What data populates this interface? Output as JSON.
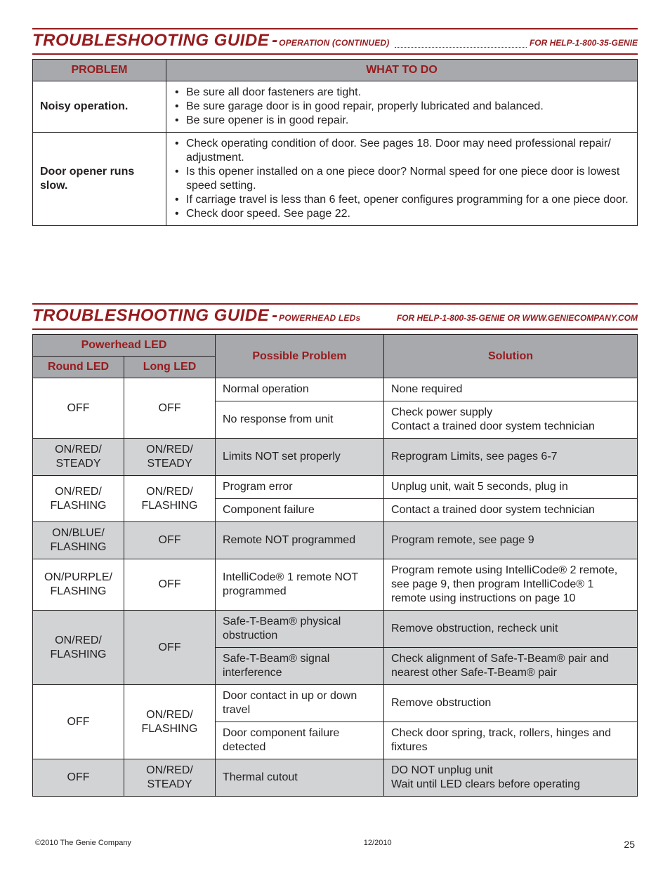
{
  "section1": {
    "title": "TROUBLESHOOTING GUIDE",
    "subtitle": "OPERATION (CONTINUED)",
    "help": "FOR HELP-1-800-35-GENIE",
    "columns": {
      "problem": "PROBLEM",
      "action": "WHAT TO DO"
    },
    "rows": [
      {
        "problem": "Noisy operation.",
        "actions": [
          "Be sure all door fasteners are tight.",
          "Be sure garage door is in good repair, properly lubricated and balanced.",
          "Be sure opener is in good repair."
        ]
      },
      {
        "problem": "Door opener runs slow.",
        "actions": [
          "Check operating condition of door.  See pages 18.  Door may need professional repair/ adjustment.",
          "Is this opener installed on a one piece door?  Normal speed for one piece door is lowest speed setting.",
          "If carriage travel is less than 6 feet, opener configures programming for a one piece door.",
          "Check door speed.  See page 22."
        ]
      }
    ]
  },
  "section2": {
    "title": "TROUBLESHOOTING GUIDE",
    "subtitle": "POWERHEAD LEDs",
    "help": "FOR HELP-1-800-35-GENIE OR WWW.GENIECOMPANY.COM",
    "columns": {
      "group": "Powerhead LED",
      "round": "Round LED",
      "long": "Long LED",
      "possible": "Possible Problem",
      "solution": "Solution"
    },
    "rows": [
      {
        "shaded": false,
        "round": "OFF",
        "long": "OFF",
        "round_rowspan": 2,
        "long_rowspan": 2,
        "possible": "Normal operation",
        "solution": "None required"
      },
      {
        "shaded": false,
        "possible": "No response from unit",
        "solution": "Check power supply\nContact a trained door system technician"
      },
      {
        "shaded": true,
        "round": "ON/RED/ STEADY",
        "long": "ON/RED/ STEADY",
        "possible": "Limits NOT set properly",
        "solution": "Reprogram Limits, see pages 6-7"
      },
      {
        "shaded": false,
        "round": "ON/RED/ FLASHING",
        "long": "ON/RED/ FLASHING",
        "round_rowspan": 2,
        "long_rowspan": 2,
        "possible": "Program error",
        "solution": "Unplug unit, wait 5 seconds, plug in"
      },
      {
        "shaded": false,
        "possible": "Component failure",
        "solution": "Contact a trained door system technician"
      },
      {
        "shaded": true,
        "round": "ON/BLUE/ FLASHING",
        "long": "OFF",
        "possible": "Remote NOT programmed",
        "solution": "Program remote, see page 9"
      },
      {
        "shaded": false,
        "round": "ON/PURPLE/ FLASHING",
        "long": "OFF",
        "possible": "IntelliCode® 1 remote NOT programmed",
        "solution": "Program remote using IntelliCode® 2 remote, see page 9, then program IntelliCode® 1 remote using instructions on page 10"
      },
      {
        "shaded": true,
        "round": "ON/RED/ FLASHING",
        "long": "OFF",
        "round_rowspan": 2,
        "long_rowspan": 2,
        "possible": "Safe-T-Beam® physical obstruction",
        "solution": "Remove obstruction, recheck unit"
      },
      {
        "shaded": true,
        "possible": "Safe-T-Beam® signal interference",
        "solution": "Check alignment of Safe-T-Beam® pair and nearest other Safe-T-Beam® pair"
      },
      {
        "shaded": false,
        "round": "OFF",
        "long": "ON/RED/ FLASHING",
        "round_rowspan": 2,
        "long_rowspan": 2,
        "possible": "Door contact in up or down travel",
        "solution": "Remove obstruction"
      },
      {
        "shaded": false,
        "possible": "Door component failure detected",
        "solution": "Check door spring, track, rollers, hinges and fixtures"
      },
      {
        "shaded": true,
        "round": "OFF",
        "long": "ON/RED/ STEADY",
        "possible": "Thermal cutout",
        "solution": "DO NOT unplug unit\nWait until LED clears before operating"
      }
    ]
  },
  "footer": {
    "copyright": "©2010    The Genie Company",
    "date": "12/2010",
    "page": "25"
  },
  "colors": {
    "accent": "#971b1e",
    "header_bg": "#a7a9ac",
    "shaded_row": "#d1d3d4",
    "text": "#231f20",
    "page_bg": "#ffffff"
  }
}
